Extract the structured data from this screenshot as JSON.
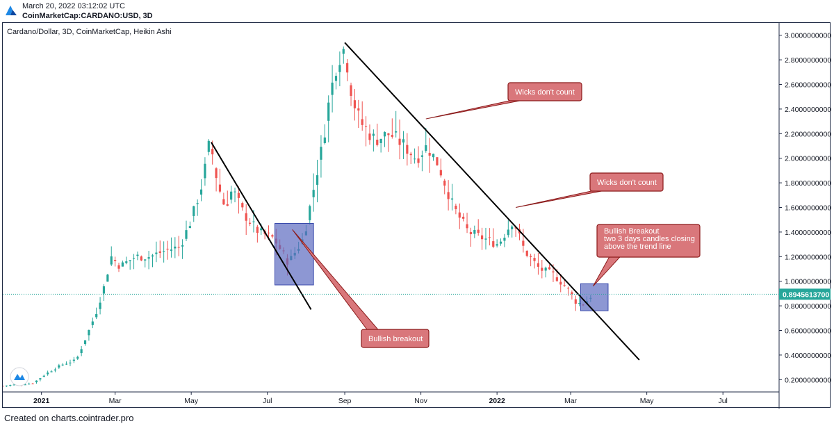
{
  "header": {
    "timestamp": "March 20, 2022 03:12:02 UTC",
    "symbol": "CoinMarketCap:CARDANO:USD, 3D",
    "logo_icon": "cointrader-logo"
  },
  "footer": {
    "text": "Created on charts.cointrader.pro"
  },
  "colors": {
    "up": "#26a69a",
    "down": "#ef5350",
    "trendline": "#000000",
    "box_fill": "#5c6bc0",
    "callout_fill": "#d9777b",
    "callout_stroke": "#8b1a1a",
    "price_line": "#26a69a"
  },
  "chart_data": {
    "type": "candlestick",
    "title": "Cardano/Dollar, 3D, CoinMarketCap, Heikin Ashi",
    "xlabel": "",
    "ylabel": "",
    "x_ticks": [
      "2021",
      "Mar",
      "May",
      "Jul",
      "Sep",
      "Nov",
      "2022",
      "Mar",
      "May",
      "Jul"
    ],
    "y_ticks": [
      "0.2000000000",
      "0.4000000000",
      "0.6000000000",
      "0.8000000000",
      "1.0000000000",
      "1.2000000000",
      "1.4000000000",
      "1.6000000000",
      "1.8000000000",
      "2.0000000000",
      "2.2000000000",
      "2.4000000000",
      "2.6000000000",
      "2.8000000000",
      "3.0000000000"
    ],
    "ylim": [
      0.1,
      3.1
    ],
    "x_start": "2020-12-01",
    "x_end": "2022-08-15",
    "last_price": "0.8945613700",
    "last_price_value": 0.8946,
    "grid": false,
    "closes": [
      [
        "2020-12-01",
        0.15
      ],
      [
        "2020-12-13",
        0.16
      ],
      [
        "2020-12-25",
        0.17
      ],
      [
        "2021-01-05",
        0.25
      ],
      [
        "2021-01-17",
        0.32
      ],
      [
        "2021-01-29",
        0.36
      ],
      [
        "2021-02-08",
        0.6
      ],
      [
        "2021-02-14",
        0.75
      ],
      [
        "2021-02-20",
        0.95
      ],
      [
        "2021-02-26",
        1.2
      ],
      [
        "2021-03-05",
        1.12
      ],
      [
        "2021-03-17",
        1.2
      ],
      [
        "2021-03-29",
        1.2
      ],
      [
        "2021-04-10",
        1.25
      ],
      [
        "2021-04-22",
        1.28
      ],
      [
        "2021-05-01",
        1.5
      ],
      [
        "2021-05-10",
        1.8
      ],
      [
        "2021-05-16",
        2.15
      ],
      [
        "2021-05-22",
        1.8
      ],
      [
        "2021-05-28",
        1.6
      ],
      [
        "2021-06-03",
        1.75
      ],
      [
        "2021-06-12",
        1.55
      ],
      [
        "2021-06-24",
        1.4
      ],
      [
        "2021-07-06",
        1.35
      ],
      [
        "2021-07-18",
        1.15
      ],
      [
        "2021-07-30",
        1.35
      ],
      [
        "2021-08-08",
        1.8
      ],
      [
        "2021-08-14",
        2.1
      ],
      [
        "2021-08-20",
        2.5
      ],
      [
        "2021-08-26",
        2.8
      ],
      [
        "2021-09-01",
        2.9
      ],
      [
        "2021-09-07",
        2.5
      ],
      [
        "2021-09-13",
        2.3
      ],
      [
        "2021-09-25",
        2.15
      ],
      [
        "2021-10-07",
        2.2
      ],
      [
        "2021-10-19",
        2.1
      ],
      [
        "2021-10-28",
        2.0
      ],
      [
        "2021-11-06",
        2.1
      ],
      [
        "2021-11-15",
        1.95
      ],
      [
        "2021-11-27",
        1.6
      ],
      [
        "2021-12-09",
        1.4
      ],
      [
        "2021-12-21",
        1.35
      ],
      [
        "2022-01-02",
        1.3
      ],
      [
        "2022-01-14",
        1.5
      ],
      [
        "2022-01-23",
        1.25
      ],
      [
        "2022-02-04",
        1.1
      ],
      [
        "2022-02-16",
        1.05
      ],
      [
        "2022-02-28",
        0.92
      ],
      [
        "2022-03-06",
        0.82
      ],
      [
        "2022-03-12",
        0.82
      ],
      [
        "2022-03-18",
        0.89
      ]
    ],
    "trendlines": [
      {
        "from": [
          "2021-05-17",
          2.13
        ],
        "to": [
          "2021-08-05",
          0.77
        ]
      },
      {
        "from": [
          "2021-09-01",
          2.94
        ],
        "to": [
          "2022-04-25",
          0.36
        ]
      }
    ],
    "shaded_boxes": [
      {
        "from": [
          "2021-07-07",
          0.97
        ],
        "to": [
          "2021-08-07",
          1.47
        ]
      },
      {
        "from": [
          "2022-03-09",
          0.76
        ],
        "to": [
          "2022-03-31",
          0.98
        ]
      }
    ],
    "annotations": [
      {
        "lines": [
          "Wicks don't count"
        ],
        "target": [
          "2021-11-05",
          2.32
        ]
      },
      {
        "lines": [
          "Wicks don't count"
        ],
        "target": [
          "2022-01-16",
          1.6
        ]
      },
      {
        "lines": [
          "Bullish Breakout",
          "two 3 days candles closing",
          "above the trend line"
        ],
        "target": [
          "2022-03-19",
          0.96
        ]
      },
      {
        "lines": [
          "Bullish breakout"
        ],
        "target": [
          "2021-07-21",
          1.42
        ]
      }
    ]
  }
}
